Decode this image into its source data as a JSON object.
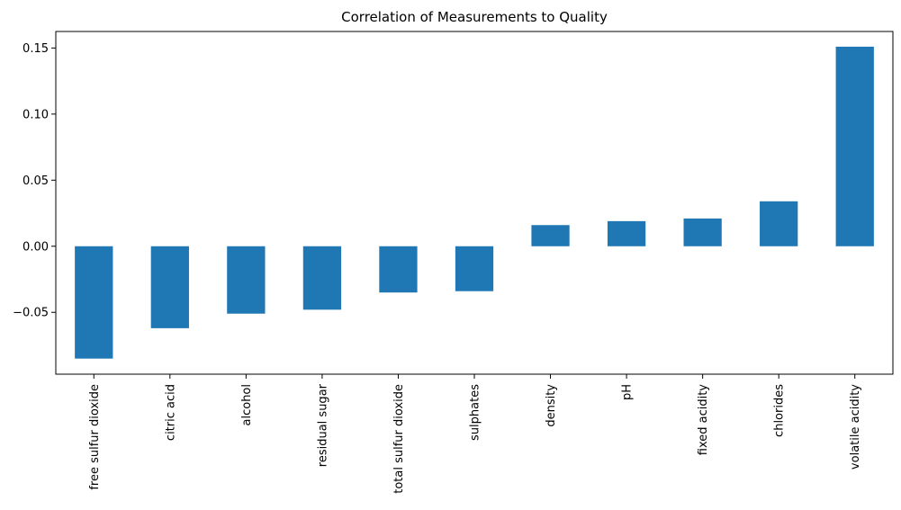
{
  "chart_data": {
    "type": "bar",
    "title": "Correlation of Measurements to Quality",
    "xlabel": "",
    "ylabel": "",
    "categories": [
      "free sulfur dioxide",
      "citric acid",
      "alcohol",
      "residual sugar",
      "total sulfur dioxide",
      "sulphates",
      "density",
      "pH",
      "fixed acidity",
      "chlorides",
      "volatile acidity"
    ],
    "values": [
      -0.085,
      -0.062,
      -0.051,
      -0.048,
      -0.035,
      -0.034,
      0.016,
      0.019,
      0.021,
      0.034,
      0.151
    ],
    "ylim": [
      -0.0968,
      0.1625
    ],
    "yticks": [
      -0.05,
      0.0,
      0.05,
      0.1,
      0.15
    ],
    "ytick_labels": [
      "−0.05",
      "0.00",
      "0.05",
      "0.10",
      "0.15"
    ],
    "bar_color": "#1f77b4",
    "grid": false,
    "legend": "none"
  }
}
